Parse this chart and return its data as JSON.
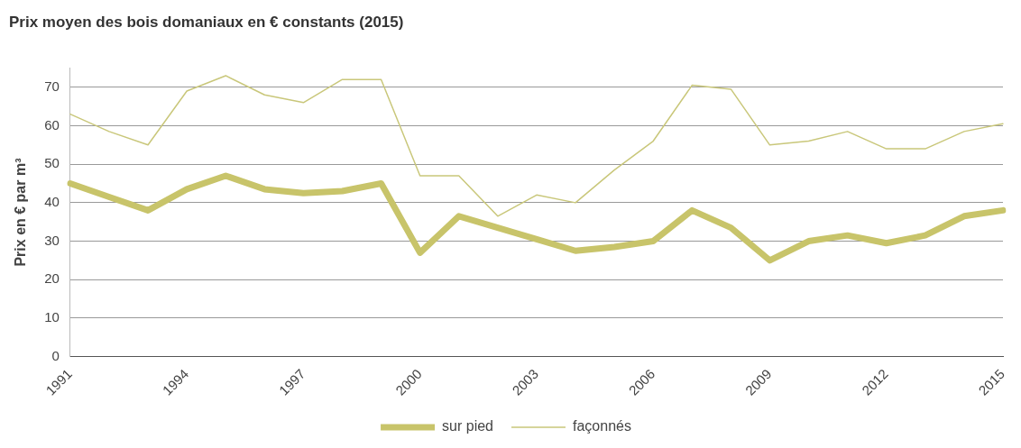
{
  "chart_data": {
    "type": "line",
    "title": "Prix moyen des bois domaniaux en € constants (2015)",
    "ylabel": "Prix en € par m³",
    "categories": [
      "1991",
      null,
      null,
      "1994",
      null,
      null,
      "1997",
      null,
      null,
      "2000",
      null,
      null,
      "2003",
      null,
      null,
      "2006",
      null,
      null,
      "2009",
      null,
      null,
      "2012",
      null,
      null,
      "2015"
    ],
    "series": [
      {
        "name": "sur pied",
        "color": "#c8c46a",
        "values": [
          45,
          41.5,
          38,
          43.5,
          47,
          43.5,
          42.5,
          43,
          45,
          27,
          36.5,
          33.5,
          30.5,
          27.5,
          28.5,
          30,
          38,
          33.5,
          25,
          30,
          31.5,
          29.5,
          31.5,
          36.5,
          38
        ]
      },
      {
        "name": "façonnés",
        "color": "#c9c77a",
        "values": [
          63,
          58.5,
          55,
          69,
          73,
          68,
          66,
          72,
          72,
          47,
          47,
          36.5,
          42,
          40,
          48.5,
          56,
          70.5,
          69.5,
          55,
          56,
          58.5,
          54,
          54,
          58.5,
          60.5
        ]
      }
    ],
    "ylim": [
      0,
      75
    ],
    "yticks": [
      0,
      10,
      20,
      30,
      40,
      50,
      60,
      70
    ],
    "grid": "y",
    "legend": "bottom",
    "marker": "none",
    "line_style": "solid"
  }
}
